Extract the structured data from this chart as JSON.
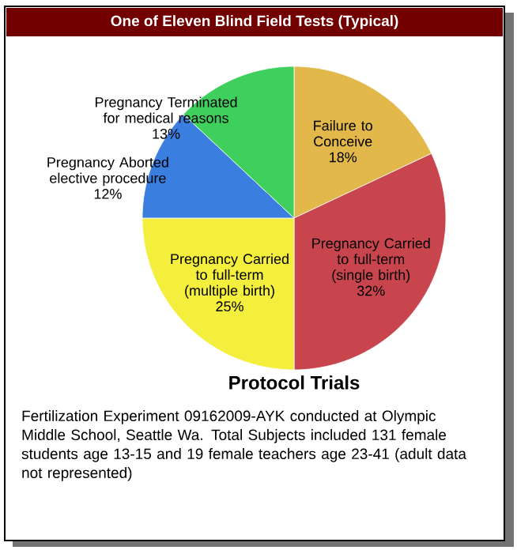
{
  "chart_data": {
    "type": "pie",
    "title": "One of Eleven Blind Field Tests (Typical)",
    "subtitle": "Protocol Trials",
    "categories": [
      "Failure to Conceive",
      "Pregnancy Carried to full-term (single birth)",
      "Pregnancy Carried to full-term (multiple birth)",
      "Pregnancy Aborted elective procedure",
      "Pregnancy Terminated for medical reasons"
    ],
    "values": [
      18,
      32,
      25,
      12,
      13
    ],
    "value_labels": [
      "18%",
      "32%",
      "25%",
      "12%",
      "13%"
    ],
    "colors": [
      "#e3b84a",
      "#c9454d",
      "#f4ee3c",
      "#3a7ee0",
      "#3fcf5c"
    ],
    "annotations": [
      "Fertilization Experiment 09162009-AYK conducted at Olympic Middle School, Seattle Wa.  Total Subjects included 131 female students age 13-15 and 19 female teachers age 23-41 (adult data not represented)"
    ]
  }
}
